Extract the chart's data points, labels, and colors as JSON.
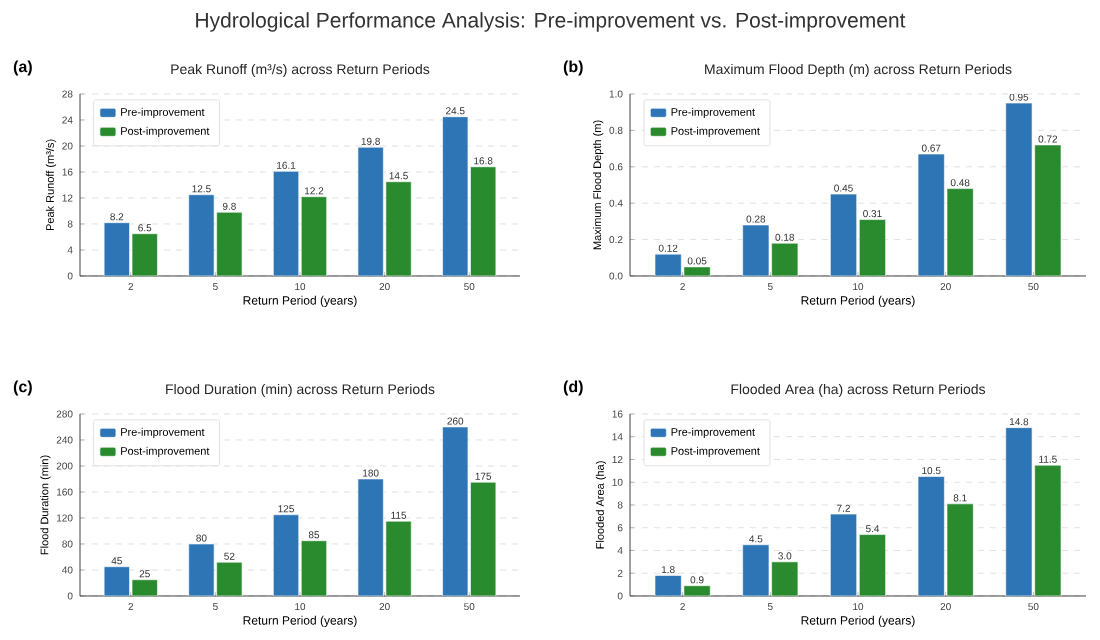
{
  "chart_data": [
    {
      "type": "bar",
      "title": "Hydrological Performance Analysis: Pre-improvement vs. Post-improvement",
      "subtitle": "Peak Runoff (m³/s) across Return Periods",
      "xlabel": "Return Period (years)",
      "ylabel": "Peak Runoff (m³/s)",
      "annotations": [
        "(a)"
      ],
      "categories": [
        "2",
        "5",
        "10",
        "20",
        "50"
      ],
      "series": [
        {
          "name": "Pre-improvement",
          "color": "#2e75b6",
          "values": [
            8.2,
            12.5,
            16.1,
            19.8,
            24.5
          ],
          "value_labels": [
            "8.2",
            "12.5",
            "16.1",
            "19.8",
            "24.5"
          ]
        },
        {
          "name": "Post-improvement",
          "color": "#2a8a2e",
          "values": [
            6.5,
            9.8,
            12.2,
            14.5,
            16.8
          ],
          "value_labels": [
            "6.5",
            "9.8",
            "12.2",
            "14.5",
            "16.8"
          ]
        }
      ],
      "ylim": [
        0,
        28
      ],
      "yticks": [
        0,
        4,
        8,
        12,
        16,
        20,
        24,
        28
      ],
      "grid": "y",
      "legend": "top left"
    },
    {
      "type": "bar",
      "subtitle": "Maximum Flood Depth (m) across Return Periods",
      "xlabel": "Return Period (years)",
      "ylabel": "Maximum Flood Depth (m)",
      "annotations": [
        "(b)"
      ],
      "categories": [
        "2",
        "5",
        "10",
        "20",
        "50"
      ],
      "series": [
        {
          "name": "Pre-improvement",
          "color": "#2e75b6",
          "values": [
            0.12,
            0.28,
            0.45,
            0.67,
            0.95
          ],
          "value_labels": [
            "0.12",
            "0.28",
            "0.45",
            "0.67",
            "0.95"
          ]
        },
        {
          "name": "Post-improvement",
          "color": "#2a8a2e",
          "values": [
            0.05,
            0.18,
            0.31,
            0.48,
            0.72
          ],
          "value_labels": [
            "0.05",
            "0.18",
            "0.31",
            "0.48",
            "0.72"
          ]
        }
      ],
      "ylim": [
        0,
        1
      ],
      "yticks": [
        {
          "value": 0,
          "label": "0.0"
        },
        0.2,
        0.4,
        0.6,
        0.8,
        {
          "value": 1,
          "label": "1.0"
        }
      ],
      "grid": "y",
      "legend": "top left"
    },
    {
      "type": "bar",
      "subtitle": "Flood Duration (min) across Return Periods",
      "xlabel": "Return Period (years)",
      "ylabel": "Flood Duration (min)",
      "annotations": [
        "(c)"
      ],
      "categories": [
        "2",
        "5",
        "10",
        "20",
        "50"
      ],
      "series": [
        {
          "name": "Pre-improvement",
          "color": "#2e75b6",
          "values": [
            45,
            80,
            125,
            180,
            260
          ],
          "value_labels": [
            "45",
            "80",
            "125",
            "180",
            "260"
          ]
        },
        {
          "name": "Post-improvement",
          "color": "#2a8a2e",
          "values": [
            25,
            52,
            85,
            115,
            175
          ],
          "value_labels": [
            "25",
            "52",
            "85",
            "115",
            "175"
          ]
        }
      ],
      "ylim": [
        0,
        280
      ],
      "yticks": [
        0,
        40,
        80,
        120,
        160,
        200,
        240,
        280
      ],
      "grid": "y",
      "legend": "top left"
    },
    {
      "type": "bar",
      "subtitle": "Flooded Area (ha) across Return Periods",
      "xlabel": "Return Period (years)",
      "ylabel": "Flooded Area (ha)",
      "annotations": [
        "(d)"
      ],
      "categories": [
        "2",
        "5",
        "10",
        "20",
        "50"
      ],
      "series": [
        {
          "name": "Pre-improvement",
          "color": "#2e75b6",
          "values": [
            1.8,
            4.5,
            7.2,
            10.5,
            14.8
          ],
          "value_labels": [
            "1.8",
            "4.5",
            "7.2",
            "10.5",
            "14.8"
          ]
        },
        {
          "name": "Post-improvement",
          "color": "#2a8a2e",
          "values": [
            0.9,
            3.0,
            5.4,
            8.1,
            11.5
          ],
          "value_labels": [
            "0.9",
            "3.0",
            "5.4",
            "8.1",
            "11.5"
          ]
        }
      ],
      "ylim": [
        0,
        16
      ],
      "yticks": [
        0,
        2,
        4,
        6,
        8,
        10,
        12,
        14,
        16
      ],
      "grid": "y",
      "legend": "top left"
    }
  ]
}
